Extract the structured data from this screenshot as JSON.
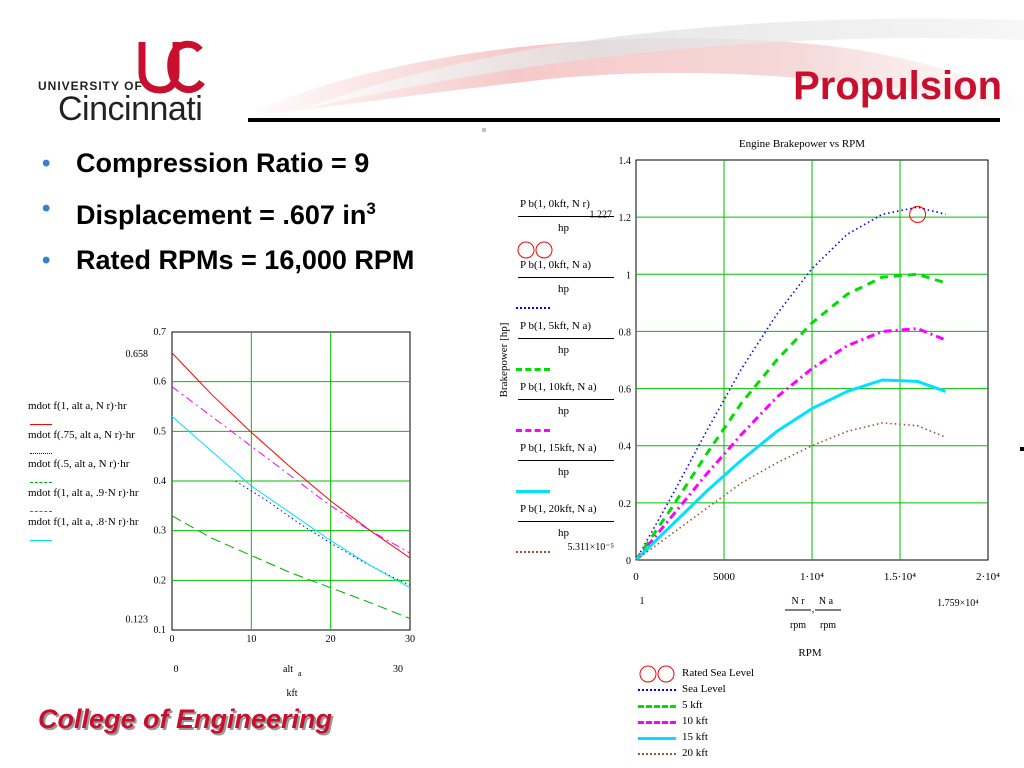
{
  "header": {
    "title": "Propulsion",
    "logo": {
      "line1": "UNIVERSITY OF",
      "line2": "Cincinnati",
      "mark": "UC"
    }
  },
  "bullets": [
    {
      "text": "Compression Ratio = 9"
    },
    {
      "text": "Displacement = .607 in",
      "sup": "3"
    },
    {
      "text": "Rated RPMs = 16,000 RPM"
    }
  ],
  "footer": {
    "text": "College of Engineering"
  },
  "colors": {
    "accent_red": "#c8102e",
    "bullet_blue": "#3a7fd0",
    "grid_green": "#00c000"
  },
  "chart_data": [
    {
      "type": "line",
      "title": "",
      "xlabel": "alt a / kft",
      "ylabel": "",
      "xlim": [
        0,
        30
      ],
      "ylim": [
        0.1,
        0.7
      ],
      "xticks": [
        0,
        10,
        20,
        30
      ],
      "yticks": [
        0.1,
        0.2,
        0.3,
        0.4,
        0.5,
        0.6,
        0.7
      ],
      "xtick_labels": [
        "0",
        "10",
        "20",
        "30"
      ],
      "ytick_labels": [
        "0.1",
        "0.2",
        "0.3",
        "0.4",
        "0.5",
        "0.6",
        "0.7"
      ],
      "range_labels": {
        "ymax": "0.658",
        "ymin": "0.123",
        "xmin": "0",
        "xmax": "30"
      },
      "axis_label": {
        "x_top": "alt",
        "x_sub": "a",
        "x_units": "kft"
      },
      "grid": true,
      "legend_position": "left",
      "series": [
        {
          "name": "mdot f(1, alt a, N r)·hr",
          "color": "#ff0000",
          "dash": "solid",
          "x": [
            0,
            5,
            10,
            15,
            20,
            25,
            30
          ],
          "y": [
            0.658,
            0.574,
            0.498,
            0.427,
            0.36,
            0.3,
            0.245
          ]
        },
        {
          "name": "mdot f(.75, alt a, N r)·hr",
          "color": "#0000ff",
          "dash": "dot",
          "x": [
            8,
            12,
            16,
            20,
            24,
            28,
            30
          ],
          "y": [
            0.4,
            0.36,
            0.315,
            0.275,
            0.238,
            0.205,
            0.19
          ]
        },
        {
          "name": "mdot f(.5, alt a, N r)·hr",
          "color": "#00aa00",
          "dash": "longdash",
          "x": [
            0,
            5,
            10,
            15,
            20,
            25,
            30
          ],
          "y": [
            0.33,
            0.285,
            0.25,
            0.215,
            0.185,
            0.155,
            0.123
          ]
        },
        {
          "name": "mdot f(1, alt a, .9·N r)·hr",
          "color": "#ff00ff",
          "dash": "dashdot",
          "x": [
            0,
            5,
            10,
            15,
            20,
            25,
            30
          ],
          "y": [
            0.59,
            0.53,
            0.47,
            0.41,
            0.35,
            0.3,
            0.255
          ]
        },
        {
          "name": "mdot f(1, alt a, .8·N r)·hr",
          "color": "#00e0ff",
          "dash": "solid",
          "x": [
            0,
            5,
            10,
            15,
            20,
            25,
            30
          ],
          "y": [
            0.53,
            0.46,
            0.39,
            0.335,
            0.28,
            0.23,
            0.185
          ]
        }
      ]
    },
    {
      "type": "line",
      "title": "Engine Brakepower vs RPM",
      "xlabel": "RPM",
      "ylabel": "Brakepower [hp]",
      "xlim": [
        0,
        20000
      ],
      "ylim": [
        0,
        1.4
      ],
      "xticks": [
        0,
        5000,
        10000,
        15000,
        20000
      ],
      "yticks": [
        0,
        0.2,
        0.4,
        0.6,
        0.8,
        1,
        1.2,
        1.4
      ],
      "xtick_labels": [
        "0",
        "5000",
        "1·10⁴",
        "1.5·10⁴",
        "2·10⁴"
      ],
      "ytick_labels": [
        "0",
        "0.2",
        "0.4",
        "0.6",
        "0.8",
        "1",
        "1.2",
        "1.4"
      ],
      "range_labels": {
        "ymax": "1.227",
        "ymin": "5.311×10⁻⁵",
        "xmin": "1",
        "xmax": "1.759×10⁴"
      },
      "axis_label": {
        "x_num1": "N r",
        "x_num2": "N a",
        "x_den": "rpm",
        "x_sep": ","
      },
      "grid": true,
      "legend_position": "left and bottom",
      "fn_labels": [
        {
          "num": "P b(1, 0kft, N r)",
          "den": "hp"
        },
        {
          "num": "P b(1, 0kft, N a)",
          "den": "hp"
        },
        {
          "num": "P b(1, 5kft, N a)",
          "den": "hp"
        },
        {
          "num": "P b(1, 10kft, N a)",
          "den": "hp"
        },
        {
          "num": "P b(1, 15kft, N a)",
          "den": "hp"
        },
        {
          "num": "P b(1, 20kft, N a)",
          "den": "hp"
        }
      ],
      "series": [
        {
          "name": "Rated Sea Level",
          "color": "#ff0000",
          "style": "circle",
          "x": [
            16000
          ],
          "y": [
            1.227
          ]
        },
        {
          "name": "Sea Level",
          "color": "#0000ff",
          "dash": "dot",
          "x": [
            0,
            2000,
            4000,
            6000,
            8000,
            10000,
            12000,
            14000,
            16000,
            17590
          ],
          "y": [
            0,
            0.22,
            0.45,
            0.67,
            0.86,
            1.02,
            1.14,
            1.21,
            1.235,
            1.21
          ]
        },
        {
          "name": "5 kft",
          "color": "#00dd00",
          "dash": "dash",
          "x": [
            0,
            2000,
            4000,
            6000,
            8000,
            10000,
            12000,
            14000,
            16000,
            17590
          ],
          "y": [
            0,
            0.18,
            0.37,
            0.55,
            0.7,
            0.83,
            0.93,
            0.99,
            1.0,
            0.97
          ]
        },
        {
          "name": "10 kft",
          "color": "#ff00ff",
          "dash": "dashdot",
          "x": [
            0,
            2000,
            4000,
            6000,
            8000,
            10000,
            12000,
            14000,
            16000,
            17590
          ],
          "y": [
            0,
            0.15,
            0.3,
            0.44,
            0.57,
            0.67,
            0.75,
            0.8,
            0.81,
            0.77
          ]
        },
        {
          "name": "15 kft",
          "color": "#00e0ff",
          "dash": "solid",
          "x": [
            0,
            2000,
            4000,
            6000,
            8000,
            10000,
            12000,
            14000,
            16000,
            17590
          ],
          "y": [
            0,
            0.12,
            0.24,
            0.35,
            0.45,
            0.53,
            0.59,
            0.63,
            0.625,
            0.59
          ]
        },
        {
          "name": "20 kft",
          "color": "#a0522d",
          "dash": "dot",
          "x": [
            0,
            2000,
            4000,
            6000,
            8000,
            10000,
            12000,
            14000,
            16000,
            17590
          ],
          "y": [
            0,
            0.09,
            0.18,
            0.27,
            0.34,
            0.4,
            0.45,
            0.48,
            0.47,
            0.43
          ]
        }
      ]
    }
  ]
}
